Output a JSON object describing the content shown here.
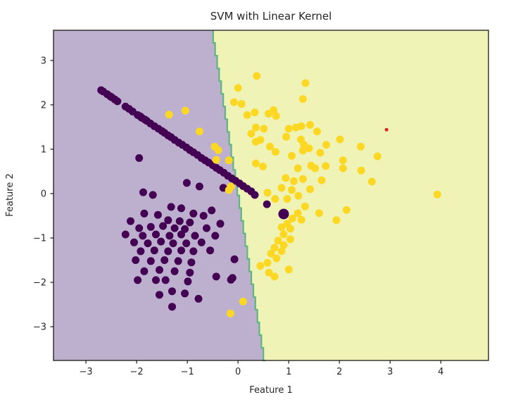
{
  "chart_data": {
    "type": "scatter",
    "title": "SVM with Linear Kernel",
    "xlabel": "Feature 1",
    "ylabel": "Feature 2",
    "xlim": [
      -3.64,
      4.94
    ],
    "ylim": [
      -3.76,
      3.68
    ],
    "grid": false,
    "legend": "none",
    "xticks": [
      -3,
      -2,
      -1,
      0,
      1,
      2,
      3,
      4
    ],
    "xtick_labels": [
      "−3",
      "−2",
      "−1",
      "0",
      "1",
      "2",
      "3",
      "4"
    ],
    "yticks": [
      3,
      2,
      1,
      0,
      -1,
      -2,
      -3
    ],
    "ytick_labels": [
      "3",
      "2",
      "1",
      "0",
      "−1",
      "−2",
      "−3"
    ],
    "colors": {
      "figure_background": "#ffffff",
      "region_class0": "#bdafce",
      "region_class1": "#eff3b6",
      "boundary_line": "#53b17c",
      "class0_marker": "#440154",
      "class1_marker": "#fcd825",
      "highlight_marker": "#d62728",
      "axes_frame": "#1a1a1a",
      "text": "#262626"
    },
    "decision_boundary": {
      "x_at_ymax": -0.49,
      "x_at_ymin": 0.54
    },
    "series": [
      {
        "name": "class-0",
        "color": "#440154",
        "marker_radius_px": 5.5,
        "points": [
          [
            -2.7,
            2.33
          ],
          [
            -2.66,
            2.3
          ],
          [
            -2.58,
            2.24
          ],
          [
            -2.52,
            2.19
          ],
          [
            -2.49,
            2.17
          ],
          [
            -2.43,
            2.12
          ],
          [
            -2.38,
            2.08
          ],
          [
            -2.22,
            1.96
          ],
          [
            -2.15,
            1.91
          ],
          [
            -2.08,
            1.85
          ],
          [
            -1.98,
            1.77
          ],
          [
            -1.93,
            1.74
          ],
          [
            -1.9,
            1.71
          ],
          [
            -1.84,
            1.67
          ],
          [
            -1.8,
            1.64
          ],
          [
            -1.73,
            1.58
          ],
          [
            -1.65,
            1.52
          ],
          [
            -1.57,
            1.46
          ],
          [
            -1.5,
            1.41
          ],
          [
            -1.45,
            1.37
          ],
          [
            -1.38,
            1.31
          ],
          [
            -1.32,
            1.27
          ],
          [
            -1.25,
            1.21
          ],
          [
            -1.17,
            1.15
          ],
          [
            -1.1,
            1.1
          ],
          [
            -1.02,
            1.04
          ],
          [
            -0.95,
            0.98
          ],
          [
            -0.88,
            0.93
          ],
          [
            -0.8,
            0.87
          ],
          [
            -0.72,
            0.8
          ],
          [
            -0.65,
            0.75
          ],
          [
            -0.58,
            0.7
          ],
          [
            -0.5,
            0.64
          ],
          [
            -0.43,
            0.58
          ],
          [
            -0.36,
            0.53
          ],
          [
            -0.28,
            0.47
          ],
          [
            -0.2,
            0.4
          ],
          [
            -0.12,
            0.34
          ],
          [
            -0.05,
            0.29
          ],
          [
            0.03,
            0.23
          ],
          [
            0.1,
            0.17
          ],
          [
            0.18,
            0.11
          ],
          [
            0.26,
            0.05
          ],
          [
            0.33,
            -0.03
          ],
          [
            0.57,
            -0.24
          ],
          [
            -1.95,
            0.8
          ],
          [
            -1.01,
            0.24
          ],
          [
            -0.76,
            0.16
          ],
          [
            -0.29,
            0.13
          ],
          [
            -1.87,
            0.03
          ],
          [
            -1.68,
            -0.03
          ],
          [
            -1.32,
            -0.3
          ],
          [
            -1.12,
            -0.33
          ],
          [
            -0.52,
            -0.38
          ],
          [
            -1.85,
            -0.45
          ],
          [
            -1.58,
            -0.48
          ],
          [
            -0.88,
            -0.45
          ],
          [
            -0.68,
            -0.5
          ],
          [
            -2.12,
            -0.62
          ],
          [
            -1.38,
            -0.6
          ],
          [
            -1.15,
            -0.62
          ],
          [
            -0.95,
            -0.65
          ],
          [
            -0.35,
            -0.68
          ],
          [
            -1.95,
            -0.78
          ],
          [
            -1.72,
            -0.75
          ],
          [
            -1.48,
            -0.73
          ],
          [
            -1.25,
            -0.78
          ],
          [
            -1.05,
            -0.8
          ],
          [
            -0.62,
            -0.78
          ],
          [
            -2.22,
            -0.92
          ],
          [
            -1.88,
            -0.95
          ],
          [
            -1.62,
            -0.92
          ],
          [
            -1.35,
            -0.95
          ],
          [
            -1.12,
            -0.92
          ],
          [
            -0.85,
            -0.95
          ],
          [
            -0.45,
            -0.95
          ],
          [
            -2.05,
            -1.1
          ],
          [
            -1.78,
            -1.12
          ],
          [
            -1.52,
            -1.08
          ],
          [
            -1.28,
            -1.12
          ],
          [
            -1.02,
            -1.12
          ],
          [
            -0.72,
            -1.1
          ],
          [
            -1.92,
            -1.3
          ],
          [
            -1.65,
            -1.28
          ],
          [
            -1.38,
            -1.3
          ],
          [
            -1.12,
            -1.28
          ],
          [
            -0.88,
            -1.3
          ],
          [
            -0.55,
            -1.28
          ],
          [
            -0.07,
            -1.48
          ],
          [
            -2.02,
            -1.5
          ],
          [
            -1.72,
            -1.52
          ],
          [
            -1.45,
            -1.5
          ],
          [
            -1.18,
            -1.52
          ],
          [
            -0.92,
            -1.55
          ],
          [
            -1.85,
            -1.75
          ],
          [
            -1.55,
            -1.72
          ],
          [
            -1.25,
            -1.75
          ],
          [
            -0.95,
            -1.78
          ],
          [
            -0.43,
            -1.87
          ],
          [
            -0.11,
            -1.9
          ],
          [
            -1.98,
            -1.95
          ],
          [
            -1.62,
            -1.95
          ],
          [
            -1.43,
            -1.95
          ],
          [
            -0.99,
            -1.98
          ],
          [
            -0.14,
            -1.94
          ],
          [
            -1.3,
            -2.2
          ],
          [
            -1.05,
            -2.25
          ],
          [
            -1.55,
            -2.28
          ],
          [
            -0.78,
            -2.37
          ],
          [
            -1.3,
            -2.55
          ]
        ]
      },
      {
        "name": "class-0-large",
        "color": "#440154",
        "marker_radius_px": 7.5,
        "points": [
          [
            0.9,
            -0.46
          ]
        ]
      },
      {
        "name": "class-1",
        "color": "#fcd825",
        "marker_radius_px": 5.5,
        "points": [
          [
            -1.36,
            1.78
          ],
          [
            -1.04,
            1.87
          ],
          [
            -0.76,
            1.4
          ],
          [
            -0.46,
            1.06
          ],
          [
            -0.39,
            0.98
          ],
          [
            -0.43,
            0.76
          ],
          [
            -0.18,
            0.75
          ],
          [
            -0.14,
            0.16
          ],
          [
            -0.18,
            0.08
          ],
          [
            0.0,
            2.38
          ],
          [
            -0.08,
            2.06
          ],
          [
            0.07,
            2.02
          ],
          [
            0.33,
            1.83
          ],
          [
            0.37,
            2.65
          ],
          [
            1.33,
            2.49
          ],
          [
            1.28,
            2.13
          ],
          [
            0.18,
            1.77
          ],
          [
            0.26,
            1.35
          ],
          [
            0.7,
            1.88
          ],
          [
            0.6,
            1.8
          ],
          [
            0.75,
            1.75
          ],
          [
            0.35,
            1.49
          ],
          [
            0.51,
            1.46
          ],
          [
            1.0,
            1.46
          ],
          [
            1.14,
            1.49
          ],
          [
            1.25,
            1.52
          ],
          [
            1.42,
            1.55
          ],
          [
            1.56,
            1.4
          ],
          [
            0.44,
            1.21
          ],
          [
            0.35,
            1.17
          ],
          [
            0.95,
            1.28
          ],
          [
            1.24,
            1.22
          ],
          [
            1.3,
            1.1
          ],
          [
            1.28,
            0.97
          ],
          [
            1.4,
            1.02
          ],
          [
            0.63,
            1.06
          ],
          [
            0.74,
            0.94
          ],
          [
            1.06,
            0.85
          ],
          [
            1.62,
            0.92
          ],
          [
            1.74,
            1.1
          ],
          [
            2.01,
            1.22
          ],
          [
            2.42,
            1.06
          ],
          [
            2.07,
            0.75
          ],
          [
            2.75,
            0.84
          ],
          [
            2.43,
            0.52
          ],
          [
            2.64,
            0.27
          ],
          [
            0.35,
            0.68
          ],
          [
            0.49,
            0.61
          ],
          [
            1.18,
            0.57
          ],
          [
            1.44,
            0.63
          ],
          [
            1.52,
            0.57
          ],
          [
            1.73,
            0.62
          ],
          [
            2.07,
            0.57
          ],
          [
            0.94,
            0.35
          ],
          [
            1.1,
            0.28
          ],
          [
            1.28,
            0.33
          ],
          [
            1.65,
            0.3
          ],
          [
            0.86,
            0.13
          ],
          [
            1.06,
            0.08
          ],
          [
            1.42,
            0.1
          ],
          [
            0.97,
            -0.12
          ],
          [
            1.19,
            -0.05
          ],
          [
            1.32,
            -0.29
          ],
          [
            1.18,
            -0.44
          ],
          [
            1.25,
            -0.59
          ],
          [
            1.07,
            -0.56
          ],
          [
            0.97,
            -0.68
          ],
          [
            0.86,
            -0.76
          ],
          [
            1.03,
            -0.79
          ],
          [
            0.9,
            -0.92
          ],
          [
            1.03,
            -1.03
          ],
          [
            0.79,
            -1.06
          ],
          [
            0.9,
            -1.16
          ],
          [
            0.72,
            -1.22
          ],
          [
            0.86,
            -1.3
          ],
          [
            0.65,
            -1.35
          ],
          [
            0.76,
            -1.46
          ],
          [
            0.58,
            -1.56
          ],
          [
            0.44,
            -1.63
          ],
          [
            0.61,
            -1.78
          ],
          [
            0.72,
            -1.87
          ],
          [
            1.0,
            -1.71
          ],
          [
            1.6,
            -0.44
          ],
          [
            1.94,
            -0.6
          ],
          [
            2.14,
            -0.37
          ],
          [
            0.58,
            0.02
          ],
          [
            0.73,
            -0.12
          ],
          [
            0.1,
            -2.43
          ],
          [
            -0.15,
            -2.7
          ],
          [
            3.93,
            -0.02
          ]
        ]
      },
      {
        "name": "highlight-point",
        "color": "#d62728",
        "marker_radius_px": 2.5,
        "points": [
          [
            2.93,
            1.44
          ]
        ]
      }
    ]
  }
}
